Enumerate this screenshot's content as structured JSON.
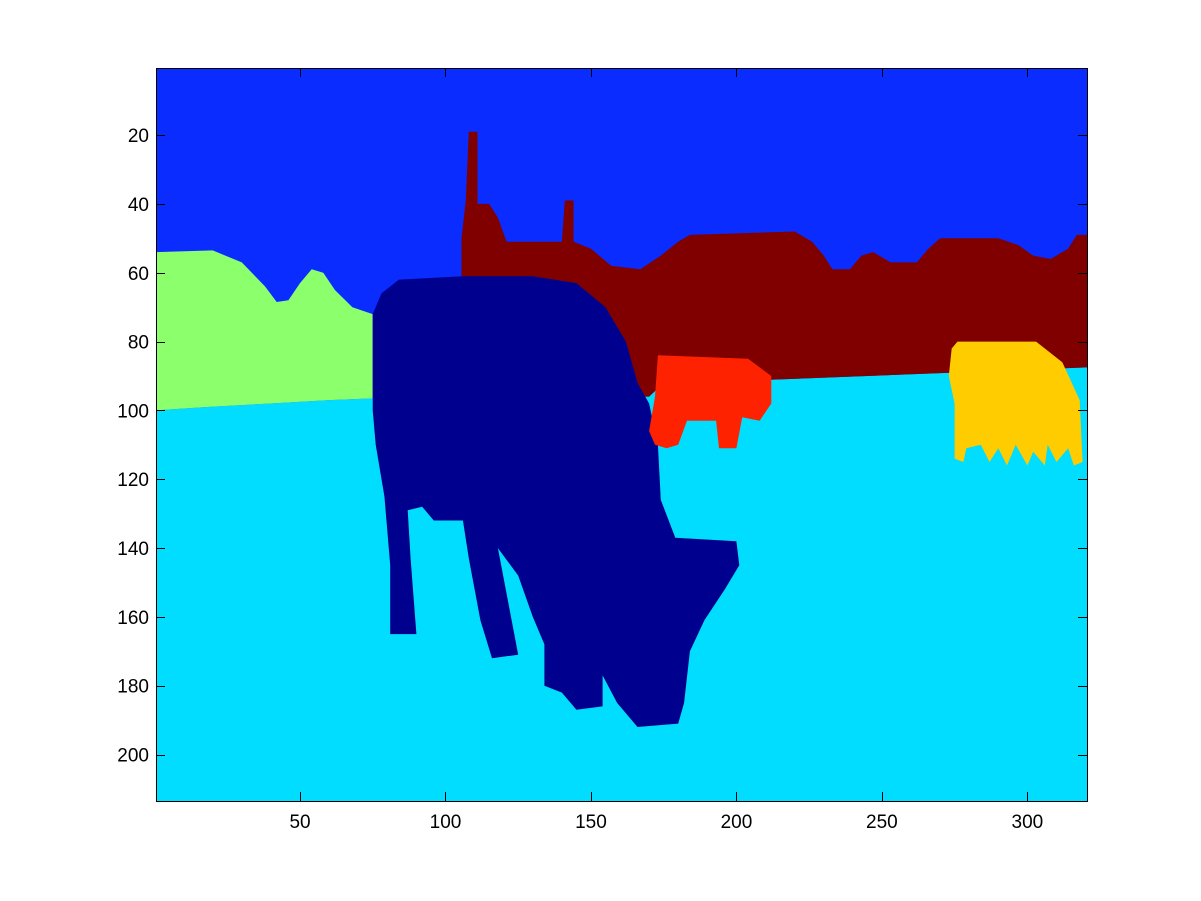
{
  "plot": {
    "x_ticks": [
      50,
      100,
      150,
      200,
      250,
      300
    ],
    "y_ticks": [
      20,
      40,
      60,
      80,
      100,
      120,
      140,
      160,
      180,
      200
    ],
    "xlim": [
      0.5,
      320.5
    ],
    "ylim": [
      0.5,
      213.5
    ],
    "y_direction": "reversed"
  },
  "regions": [
    {
      "name": "sky",
      "color": "#0a2cff"
    },
    {
      "name": "water",
      "color": "#00ddff"
    },
    {
      "name": "mountain-left",
      "color": "#8cff6c"
    },
    {
      "name": "hill-band",
      "color": "#800000"
    },
    {
      "name": "cow-large",
      "color": "#00008f"
    },
    {
      "name": "cow-red",
      "color": "#ff2200"
    },
    {
      "name": "cow-yellow",
      "color": "#ffcc00"
    }
  ],
  "colors": {
    "frame": "#000000",
    "background": "#ffffff"
  }
}
